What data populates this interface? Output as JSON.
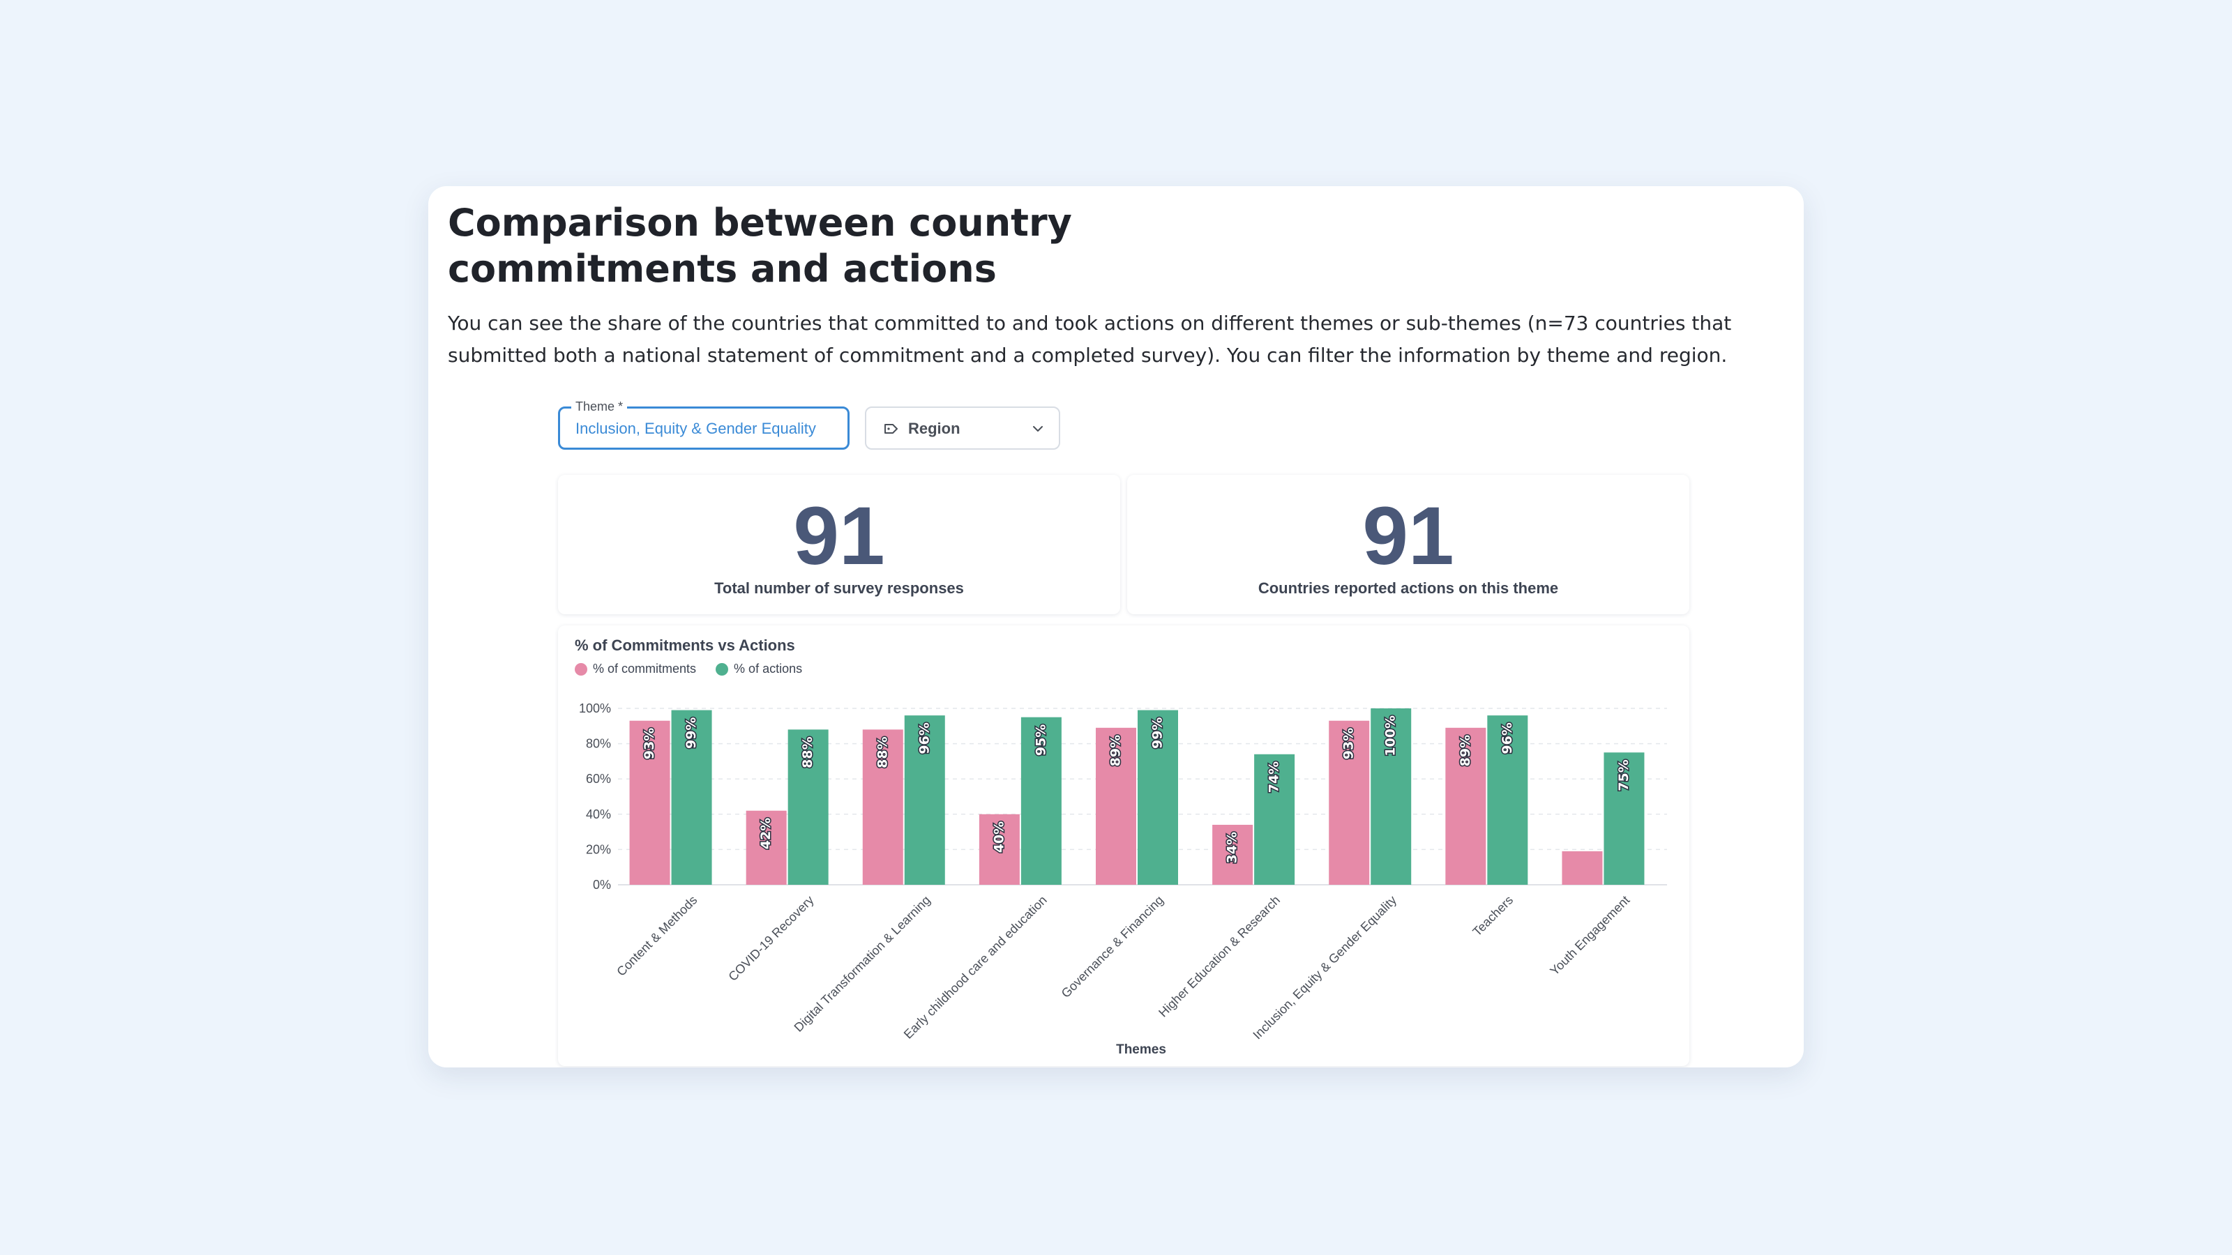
{
  "page": {
    "title": "Comparison between country commitments and actions",
    "description": "You can see the share of the countries that committed to and took actions on different themes or sub-themes (n=73 countries that submitted both a national statement of commitment and a completed survey). You can filter the information by theme and region."
  },
  "filters": {
    "theme_label": "Theme *",
    "theme_value": "Inclusion, Equity & Gender Equality",
    "region_label": "Region",
    "region_icon": "tag-icon",
    "chevron_icon": "chevron-down-icon"
  },
  "kpis": [
    {
      "value": "91",
      "label": "Total number of survey responses"
    },
    {
      "value": "91",
      "label": "Countries reported actions on this theme"
    }
  ],
  "colors": {
    "commitments": "#e68aa8",
    "actions": "#4fb08f",
    "accent": "#3a8ad6",
    "kpi_number": "#4a5878"
  },
  "chart_data": {
    "type": "bar",
    "title": "% of Commitments vs Actions",
    "xlabel": "Themes",
    "ylabel": "",
    "ylim": [
      0,
      100
    ],
    "yticks": [
      "0%",
      "20%",
      "40%",
      "60%",
      "80%",
      "100%"
    ],
    "grid": true,
    "legend_position": "top-left",
    "categories": [
      "Content & Methods",
      "COVID-19 Recovery",
      "Digital Transformation & Learning",
      "Early childhood care and education",
      "Governance & Financing",
      "Higher Education & Research",
      "Inclusion, Equity & Gender Equality",
      "Teachers",
      "Youth Engagement"
    ],
    "series": [
      {
        "name": "% of commitments",
        "values": [
          93,
          42,
          88,
          40,
          89,
          34,
          93,
          89,
          19
        ],
        "labels": [
          "93%",
          "42%",
          "88%",
          "40%",
          "89%",
          "34%",
          "93%",
          "89%",
          ""
        ]
      },
      {
        "name": "% of actions",
        "values": [
          99,
          88,
          96,
          95,
          99,
          74,
          100,
          96,
          75
        ],
        "labels": [
          "99%",
          "88%",
          "96%",
          "95%",
          "99%",
          "74%",
          "100%",
          "96%",
          "75%"
        ]
      }
    ]
  }
}
